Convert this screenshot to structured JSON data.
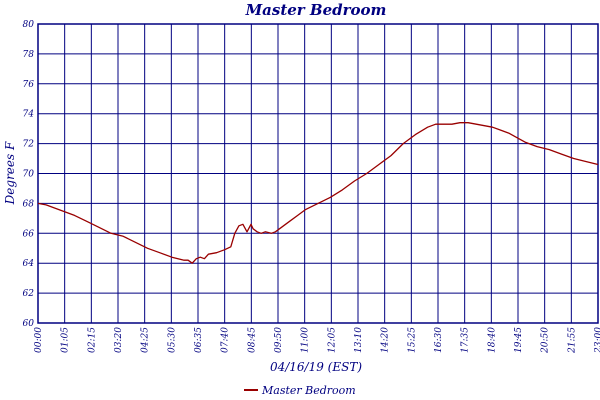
{
  "chart_data": {
    "type": "line",
    "title": "Master Bedroom",
    "xlabel": "04/16/19 (EST)",
    "ylabel": "Degrees F",
    "ylim": [
      60,
      80
    ],
    "ytick_step": 2,
    "xlim_minutes": [
      0,
      1380
    ],
    "grid": true,
    "legend": "bottom-center",
    "colors": {
      "axis": "#000080",
      "grid": "#000080",
      "series": "#990000"
    },
    "yticks": [
      "60",
      "62",
      "64",
      "66",
      "68",
      "70",
      "72",
      "74",
      "76",
      "78",
      "80"
    ],
    "xticks": [
      "00:00",
      "01:05",
      "02:15",
      "03:20",
      "04:25",
      "05:30",
      "06:35",
      "07:40",
      "08:45",
      "09:50",
      "11:00",
      "12:05",
      "13:10",
      "14:20",
      "15:25",
      "16:30",
      "17:35",
      "18:40",
      "19:45",
      "20:50",
      "21:55",
      "23:00"
    ],
    "series": [
      {
        "name": "Master Bedroom",
        "x": [
          "00:00",
          "00:20",
          "00:40",
          "01:00",
          "01:30",
          "02:00",
          "02:30",
          "03:00",
          "03:30",
          "04:00",
          "04:30",
          "05:00",
          "05:30",
          "06:00",
          "06:10",
          "06:20",
          "06:30",
          "06:40",
          "06:50",
          "07:00",
          "07:20",
          "07:40",
          "07:55",
          "08:05",
          "08:15",
          "08:25",
          "08:35",
          "08:45",
          "08:50",
          "09:00",
          "09:10",
          "09:20",
          "09:35",
          "09:45",
          "10:00",
          "10:20",
          "10:40",
          "11:00",
          "11:30",
          "12:00",
          "12:30",
          "13:00",
          "13:30",
          "14:00",
          "14:30",
          "15:00",
          "15:30",
          "16:00",
          "16:20",
          "16:40",
          "17:00",
          "17:20",
          "17:40",
          "18:00",
          "18:20",
          "18:40",
          "19:00",
          "19:20",
          "19:40",
          "20:00",
          "20:30",
          "21:00",
          "21:30",
          "22:00",
          "22:30",
          "23:00"
        ],
        "values": [
          68.0,
          67.9,
          67.7,
          67.5,
          67.2,
          66.8,
          66.4,
          66.0,
          65.8,
          65.4,
          65.0,
          64.7,
          64.4,
          64.2,
          64.2,
          64.0,
          64.3,
          64.4,
          64.3,
          64.6,
          64.7,
          64.9,
          65.1,
          66.0,
          66.5,
          66.6,
          66.1,
          66.6,
          66.3,
          66.1,
          66.0,
          66.1,
          66.0,
          66.1,
          66.4,
          66.8,
          67.2,
          67.6,
          68.0,
          68.4,
          68.9,
          69.5,
          70.0,
          70.6,
          71.2,
          72.0,
          72.6,
          73.1,
          73.3,
          73.3,
          73.3,
          73.4,
          73.4,
          73.3,
          73.2,
          73.1,
          72.9,
          72.7,
          72.4,
          72.1,
          71.8,
          71.6,
          71.3,
          71.0,
          70.8,
          70.6
        ]
      }
    ]
  }
}
